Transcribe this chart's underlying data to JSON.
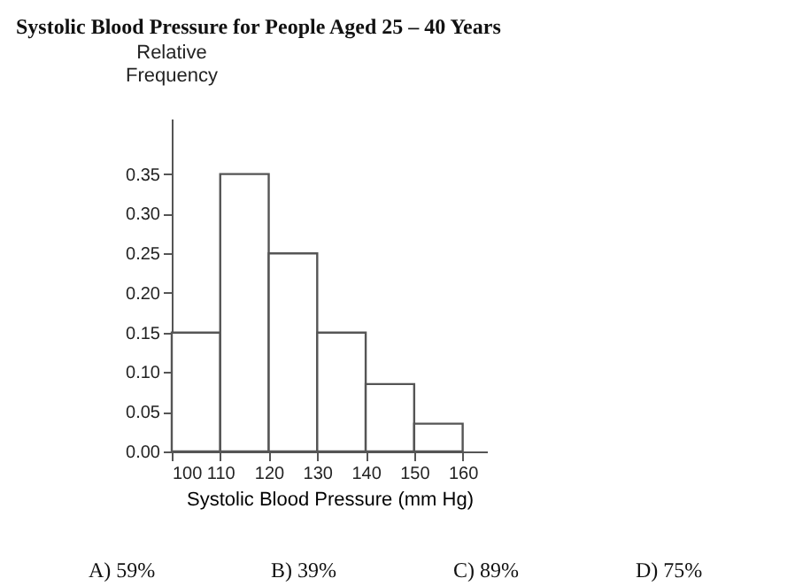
{
  "chart_data": {
    "type": "histogram",
    "title": "Systolic Blood Pressure for People Aged 25 – 40 Years",
    "xlabel": "Systolic Blood Pressure (mm Hg)",
    "ylabel": "Relative Frequency",
    "bins": [
      100,
      110,
      120,
      130,
      140,
      150,
      160
    ],
    "values": [
      0.15,
      0.35,
      0.25,
      0.15,
      0.085,
      0.035
    ],
    "color": "#ffffff",
    "xlim": [
      100,
      165
    ],
    "xticks": [
      100,
      110,
      120,
      130,
      140,
      150,
      160
    ],
    "ylim": [
      0,
      0.42
    ],
    "yticks": [
      {
        "value": 0,
        "label": "0.00"
      },
      {
        "value": 0.05,
        "label": "0.05"
      },
      {
        "value": 0.1,
        "label": "0.10"
      },
      {
        "value": 0.15,
        "label": "0.15"
      },
      {
        "value": 0.2,
        "label": "0.20"
      },
      {
        "value": 0.25,
        "label": "0.25"
      },
      {
        "value": 0.3,
        "label": "0.30"
      },
      {
        "value": 0.35,
        "label": "0.35"
      }
    ],
    "grid": false,
    "annotations": [
      "A) 59%",
      "B) 39%",
      "C) 89%",
      "D) 75%"
    ]
  }
}
